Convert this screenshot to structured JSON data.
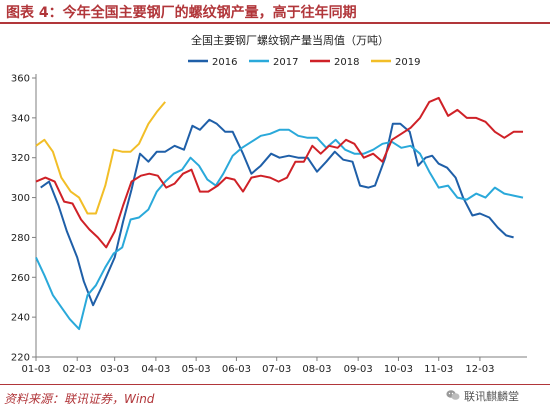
{
  "header": {
    "title": "图表 4：今年全国主要钢厂的螺纹钢产量，高于往年同期"
  },
  "footer": {
    "source": "资料来源：联讯证券，Wind"
  },
  "watermark": {
    "text": "联讯麒麟堂",
    "icon": "wechat-icon"
  },
  "chart_data": {
    "type": "line",
    "title": "全国主要钢厂螺纹钢产量当周值（万吨）",
    "ylim": [
      220,
      360
    ],
    "yticks": [
      220,
      240,
      260,
      280,
      300,
      320,
      340,
      360
    ],
    "xlim": [
      0,
      52
    ],
    "xticks": [
      {
        "x": 0,
        "label": "01-03"
      },
      {
        "x": 4.4,
        "label": "02-03"
      },
      {
        "x": 8.4,
        "label": "03-03"
      },
      {
        "x": 12.8,
        "label": "04-03"
      },
      {
        "x": 17.1,
        "label": "05-03"
      },
      {
        "x": 21.4,
        "label": "06-03"
      },
      {
        "x": 25.7,
        "label": "07-03"
      },
      {
        "x": 30.0,
        "label": "08-03"
      },
      {
        "x": 34.4,
        "label": "09-03"
      },
      {
        "x": 38.7,
        "label": "10-03"
      },
      {
        "x": 43.0,
        "label": "11-03"
      },
      {
        "x": 47.4,
        "label": "12-03"
      }
    ],
    "grid": false,
    "legend": "top",
    "series": [
      {
        "name": "2016",
        "color": "#1f5fa8",
        "x": [
          0.5,
          1.4,
          2.4,
          3.3,
          4.4,
          5.1,
          5.6,
          6.1,
          7.1,
          8.4,
          9.3,
          10.2,
          11.1,
          12,
          12.9,
          13.8,
          14.8,
          15.8,
          16.7,
          17.5,
          18.5,
          19.3,
          20.2,
          21,
          22.1,
          23,
          24,
          25.1,
          26,
          27,
          28,
          29,
          30,
          31,
          31.9,
          32.8,
          33.8,
          34.6,
          35.5,
          36.2,
          37.3,
          38.1,
          38.9,
          39.9,
          40.8,
          41.6,
          42.3,
          43,
          43.9,
          44.8,
          45.6,
          46.6,
          47.4,
          48.4,
          49.3,
          50.2,
          51
        ],
        "values": [
          305,
          308,
          296,
          283,
          270,
          258,
          252,
          246,
          256,
          270,
          288,
          304,
          322,
          318,
          323,
          323,
          326,
          324,
          336,
          334,
          339,
          337,
          333,
          333,
          322,
          312,
          316,
          322,
          320,
          321,
          320,
          320,
          313,
          318,
          323,
          319,
          318,
          306,
          305,
          306,
          320,
          337,
          337,
          333,
          316,
          320,
          321,
          317,
          315,
          310,
          300,
          291,
          292,
          290,
          285,
          281,
          280
        ]
      },
      {
        "name": "2017",
        "color": "#2aa9da",
        "x": [
          0,
          0.9,
          1.8,
          2.7,
          3.6,
          4.6,
          5.5,
          6.4,
          7.4,
          8.3,
          9.2,
          10.1,
          11,
          12,
          12.9,
          13.8,
          14.7,
          15.6,
          16.5,
          17.4,
          18.3,
          19.2,
          20,
          21,
          22,
          23,
          24,
          25,
          26,
          27,
          28,
          29,
          30,
          31,
          32,
          33,
          34,
          35,
          36,
          37,
          38,
          39,
          40,
          41,
          42,
          43,
          44,
          45,
          46,
          47,
          48,
          49,
          50,
          51,
          52
        ],
        "values": [
          270,
          261,
          251,
          245,
          239,
          234,
          251,
          256,
          265,
          272,
          275,
          289,
          290,
          294,
          303,
          308,
          312,
          314,
          320,
          316,
          309,
          306,
          312,
          321,
          325,
          328,
          331,
          332,
          334,
          334,
          331,
          330,
          330,
          325,
          329,
          324,
          322,
          322,
          324,
          327,
          328,
          325,
          326,
          322,
          313,
          305,
          306,
          300,
          299,
          302,
          300,
          305,
          302,
          301,
          300
        ]
      },
      {
        "name": "2018",
        "color": "#cf2127",
        "x": [
          0,
          1,
          2,
          3,
          3.9,
          4.8,
          5.7,
          6.6,
          7.5,
          8.4,
          9.3,
          10.2,
          11.2,
          12.1,
          13,
          13.9,
          14.8,
          15.7,
          16.6,
          17.5,
          18.4,
          19.4,
          20.3,
          21.2,
          22.1,
          23,
          24,
          25,
          25.9,
          26.8,
          27.7,
          28.6,
          29.5,
          30.4,
          31.3,
          32.2,
          33.1,
          34,
          35,
          36,
          37,
          38,
          39,
          40,
          41,
          42,
          43,
          44,
          45,
          46,
          47,
          48,
          49,
          50,
          51,
          52
        ],
        "values": [
          308,
          310,
          308,
          298,
          297,
          289,
          284,
          280,
          275,
          283,
          296,
          308,
          311,
          312,
          311,
          305,
          307,
          312,
          314,
          303,
          303,
          306,
          310,
          309,
          303,
          310,
          311,
          310,
          308,
          310,
          318,
          318,
          326,
          322,
          326,
          325,
          329,
          327,
          320,
          322,
          318,
          329,
          332,
          335,
          340,
          348,
          350,
          341,
          344,
          340,
          340,
          338,
          333,
          330,
          333,
          333
        ]
      },
      {
        "name": "2019",
        "color": "#f2be27",
        "x": [
          0,
          0.9,
          1.8,
          2.7,
          3.7,
          4.6,
          5.5,
          6.4,
          7.4,
          8.3,
          9.2,
          10.1,
          11,
          12,
          12.9,
          13.8
        ],
        "values": [
          326,
          329,
          323,
          310,
          303,
          300,
          292,
          292,
          306,
          324,
          323,
          323,
          327,
          337,
          343,
          348
        ]
      }
    ]
  }
}
